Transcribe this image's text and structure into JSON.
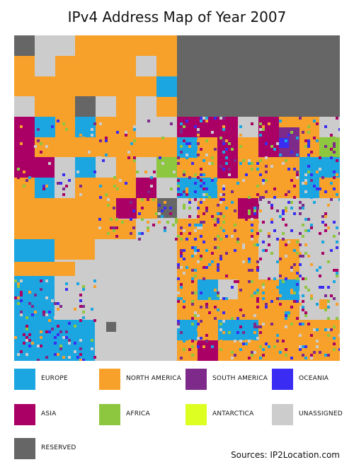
{
  "title": "IPv4 Address Map of Year 2007",
  "source_text": "Sources: IP2Location.com",
  "colors": {
    "europe": "#1ba6e1",
    "north_america": "#f7a12a",
    "south_america": "#7e2a8a",
    "oceania": "#3a2cf2",
    "asia": "#aa0066",
    "africa": "#8dc63f",
    "antarctica": "#ddff22",
    "unassigned": "#cccccc",
    "reserved": "#666666"
  },
  "legend": [
    {
      "key": "europe",
      "label": "EUROPE"
    },
    {
      "key": "north_america",
      "label": "NORTH AMERICA"
    },
    {
      "key": "south_america",
      "label": "SOUTH AMERICA"
    },
    {
      "key": "oceania",
      "label": "OCEANIA"
    },
    {
      "key": "asia",
      "label": "ASIA"
    },
    {
      "key": "africa",
      "label": "AFRICA"
    },
    {
      "key": "antarctica",
      "label": "ANTARCTICA"
    },
    {
      "key": "unassigned",
      "label": "UNASSIGNED"
    },
    {
      "key": "reserved",
      "label": "RESERVED"
    }
  ]
}
